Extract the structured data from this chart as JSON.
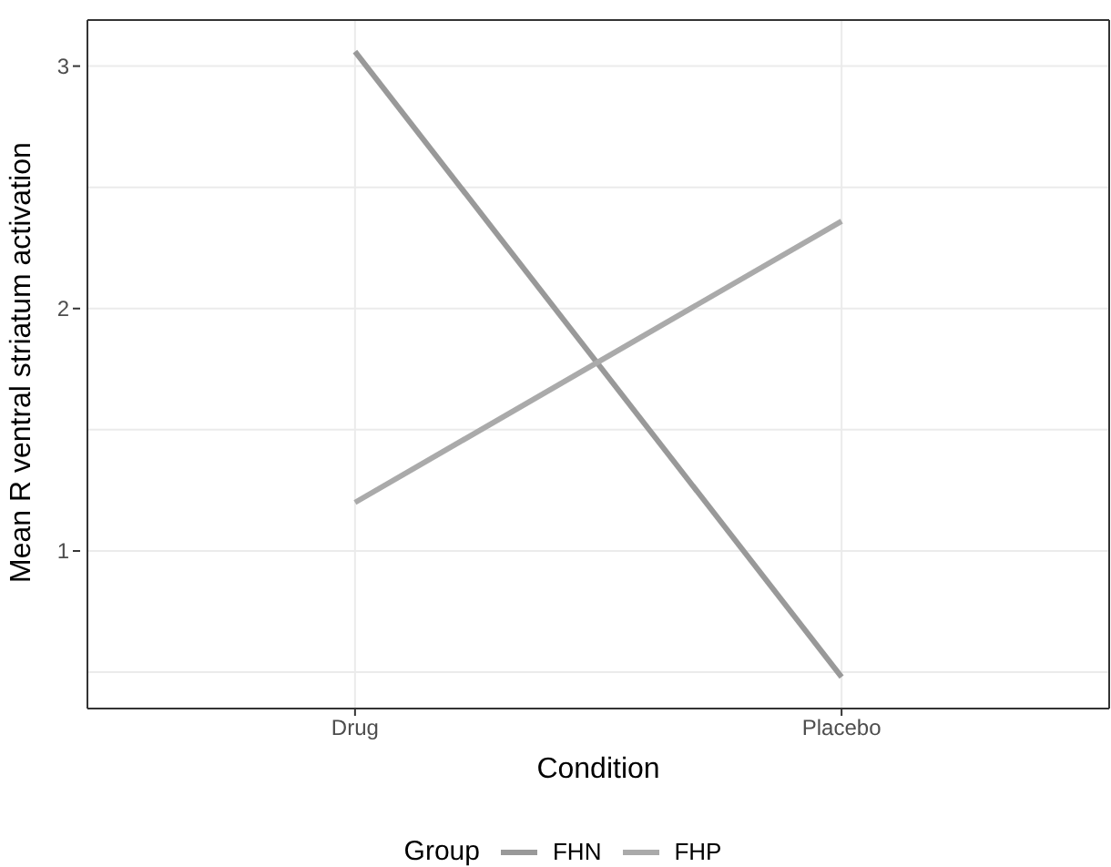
{
  "chart_data": {
    "type": "line",
    "xlabel": "Condition",
    "ylabel": "Mean R ventral striatum activation",
    "legend_title": "Group",
    "categories": [
      "Drug",
      "Placebo"
    ],
    "series": [
      {
        "name": "FHN",
        "color": "#999999",
        "values": [
          3.06,
          0.48
        ]
      },
      {
        "name": "FHP",
        "color": "#aaaaaa",
        "values": [
          1.2,
          2.36
        ]
      }
    ],
    "ylim": [
      0.35,
      3.19
    ],
    "yticks": [
      {
        "value": 0.5,
        "label": null
      },
      1,
      {
        "value": 1.5,
        "label": null
      },
      2,
      {
        "value": 2.5,
        "label": null
      },
      3
    ],
    "grid": true,
    "legend": "bottom",
    "marker": "none",
    "line_style": "solid"
  }
}
